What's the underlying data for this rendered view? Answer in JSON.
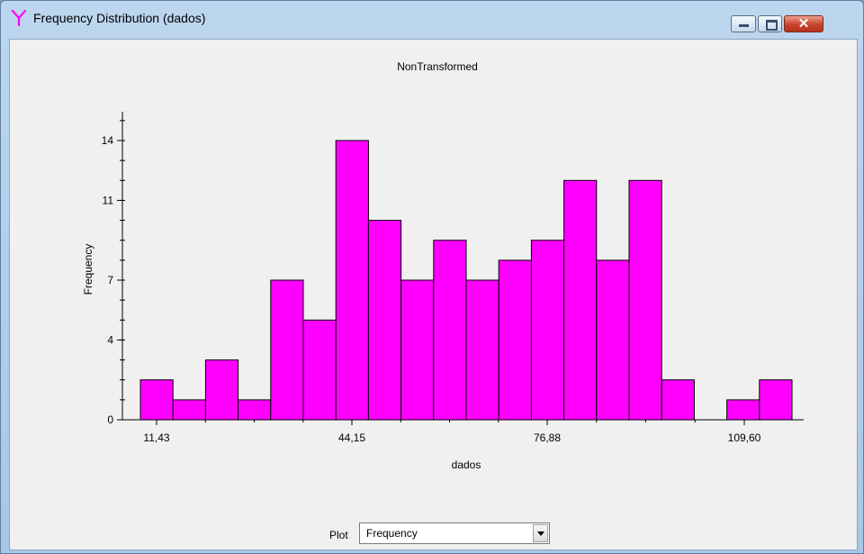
{
  "window": {
    "title": "Frequency Distribution (dados)",
    "controls": {
      "minimize": "minimize-icon",
      "maximize": "maximize-icon",
      "close": "close-icon"
    }
  },
  "chart_data": {
    "type": "bar",
    "title": "NonTransformed",
    "xlabel": "dados",
    "ylabel": "Frequency",
    "bar_color": "#ff00ff",
    "x_tick_labels": [
      "11,43",
      "44,15",
      "76,88",
      "109,60"
    ],
    "y_tick_labels": [
      "0",
      "4",
      "7",
      "11",
      "14"
    ],
    "ylim": [
      0,
      15
    ],
    "values": [
      2,
      1,
      3,
      1,
      7,
      5,
      14,
      10,
      7,
      9,
      7,
      8,
      9,
      12,
      8,
      12,
      2,
      0,
      1,
      2
    ],
    "grid": false,
    "legend": "none"
  },
  "controls": {
    "plot_label": "Plot",
    "plot_value": "Frequency"
  }
}
